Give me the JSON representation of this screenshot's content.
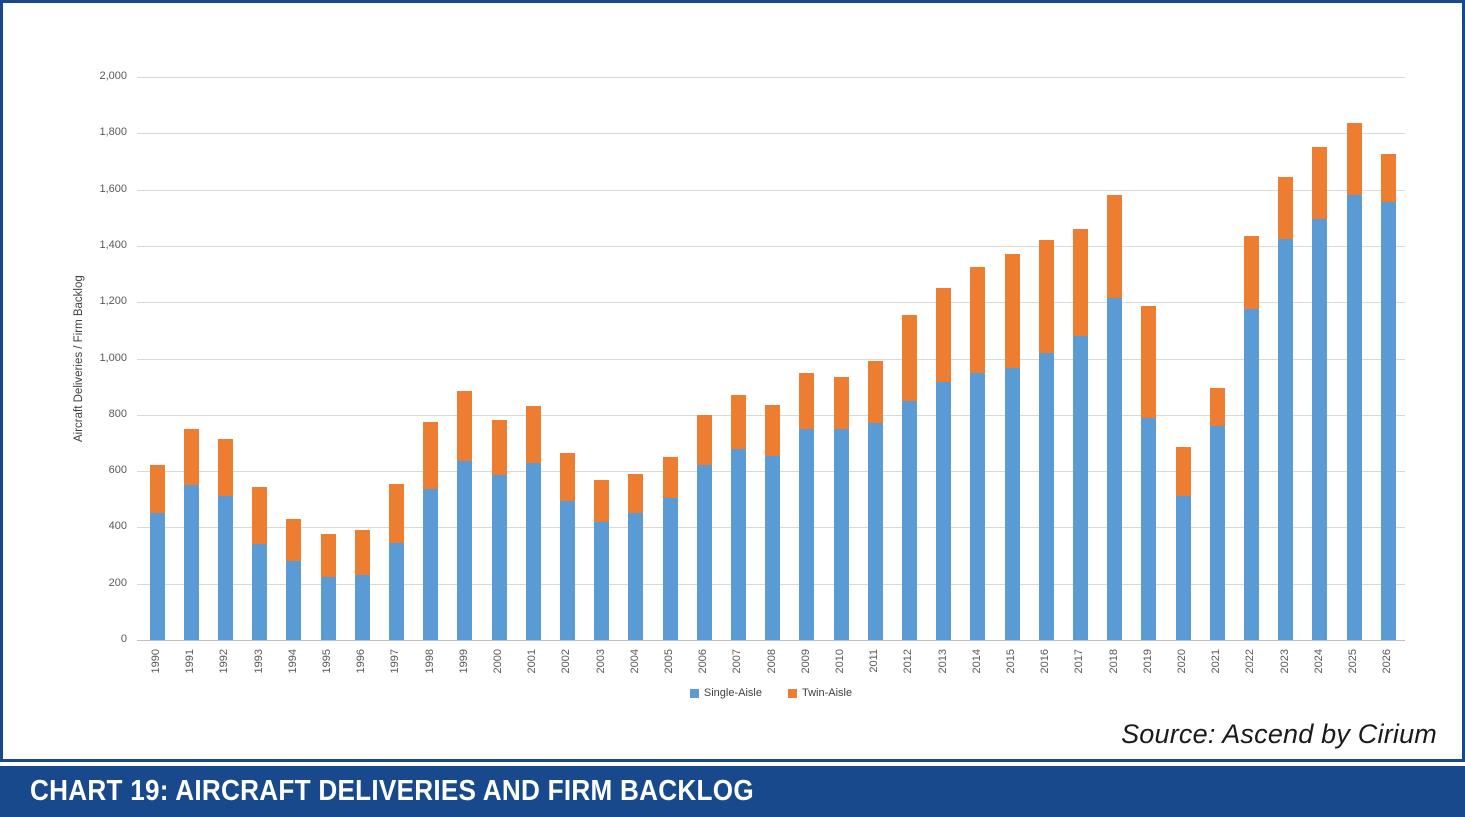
{
  "frame": {
    "border_color": "#17498C"
  },
  "source_note": "Source: Ascend by Cirium",
  "footer": {
    "title": "CHART 19: AIRCRAFT DELIVERIES AND FIRM BACKLOG",
    "bar_color": "#17498C",
    "text_color": "#FFFFFF"
  },
  "chart_data": {
    "type": "bar",
    "stacked": true,
    "title": "",
    "xlabel": "",
    "ylabel": "Aircraft Deliveries / Firm Backlog",
    "ylim": [
      0,
      2000
    ],
    "ytick_interval": 200,
    "ytick_labels": [
      "0",
      "200",
      "400",
      "600",
      "800",
      "1,000",
      "1,200",
      "1,400",
      "1,600",
      "1,800",
      "2,000"
    ],
    "grid": true,
    "legend_position": "bottom",
    "categories": [
      "1990",
      "1991",
      "1992",
      "1993",
      "1994",
      "1995",
      "1996",
      "1997",
      "1998",
      "1999",
      "2000",
      "2001",
      "2002",
      "2003",
      "2004",
      "2005",
      "2006",
      "2007",
      "2008",
      "2009",
      "2010",
      "2011",
      "2012",
      "2013",
      "2014",
      "2015",
      "2016",
      "2017",
      "2018",
      "2019",
      "2020",
      "2021",
      "2022",
      "2023",
      "2024",
      "2025",
      "2026"
    ],
    "series": [
      {
        "name": "Single-Aisle",
        "color": "#5B9BD5",
        "values": [
          450,
          550,
          510,
          340,
          280,
          225,
          230,
          345,
          535,
          635,
          585,
          630,
          495,
          420,
          450,
          505,
          620,
          680,
          655,
          750,
          750,
          770,
          850,
          915,
          950,
          965,
          1020,
          1080,
          1215,
          790,
          510,
          760,
          1175,
          1425,
          1495,
          1580,
          1555
        ]
      },
      {
        "name": "Twin-Aisle",
        "color": "#ED7D31",
        "values": [
          170,
          200,
          205,
          205,
          150,
          150,
          160,
          210,
          240,
          250,
          195,
          200,
          170,
          150,
          140,
          145,
          180,
          190,
          180,
          200,
          185,
          220,
          305,
          335,
          375,
          405,
          400,
          380,
          365,
          395,
          175,
          135,
          260,
          220,
          255,
          255,
          170
        ]
      }
    ]
  }
}
